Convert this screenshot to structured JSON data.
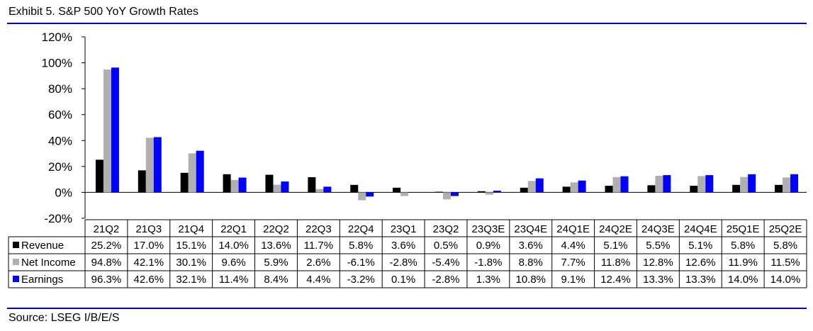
{
  "header": {
    "title": "Exhibit 5.  S&P 500 YoY Growth Rates"
  },
  "footer": {
    "source": "Source: LSEG I/B/E/S"
  },
  "chart_data": {
    "type": "bar",
    "title": "Exhibit 5.  S&P 500 YoY Growth Rates",
    "categories": [
      "21Q2",
      "21Q3",
      "21Q4",
      "22Q1",
      "22Q2",
      "22Q3",
      "22Q4",
      "23Q1",
      "23Q2",
      "23Q3E",
      "23Q4E",
      "24Q1E",
      "24Q2E",
      "24Q3E",
      "24Q4E",
      "25Q1E",
      "25Q2E"
    ],
    "y_ticks": [
      "-20%",
      "0%",
      "20%",
      "40%",
      "60%",
      "80%",
      "100%",
      "120%"
    ],
    "ylim": [
      -20,
      120
    ],
    "y_tick_step": 20,
    "grid": false,
    "legend_position": "data-table-left",
    "series": [
      {
        "name": "Revenue",
        "color": "#000000",
        "values": [
          25.2,
          17.0,
          15.1,
          14.0,
          13.6,
          11.7,
          5.8,
          3.6,
          0.5,
          0.9,
          3.6,
          4.4,
          5.1,
          5.5,
          5.1,
          5.8,
          5.8
        ],
        "labels": [
          "25.2%",
          "17.0%",
          "15.1%",
          "14.0%",
          "13.6%",
          "11.7%",
          "5.8%",
          "3.6%",
          "0.5%",
          "0.9%",
          "3.6%",
          "4.4%",
          "5.1%",
          "5.5%",
          "5.1%",
          "5.8%",
          "5.8%"
        ]
      },
      {
        "name": "Net Income",
        "color": "#b0b0b0",
        "values": [
          94.8,
          42.1,
          30.1,
          9.6,
          5.9,
          2.6,
          -6.1,
          -2.8,
          -5.4,
          -1.8,
          8.8,
          7.7,
          11.8,
          12.8,
          12.6,
          11.9,
          11.5
        ],
        "labels": [
          "94.8%",
          "42.1%",
          "30.1%",
          "9.6%",
          "5.9%",
          "2.6%",
          "-6.1%",
          "-2.8%",
          "-5.4%",
          "-1.8%",
          "8.8%",
          "7.7%",
          "11.8%",
          "12.8%",
          "12.6%",
          "11.9%",
          "11.5%"
        ]
      },
      {
        "name": "Earnings",
        "color": "#0000ff",
        "values": [
          96.3,
          42.6,
          32.1,
          11.4,
          8.4,
          4.4,
          -3.2,
          0.1,
          -2.8,
          1.3,
          10.8,
          9.1,
          12.4,
          13.3,
          13.3,
          14.0,
          14.0
        ],
        "labels": [
          "96.3%",
          "42.6%",
          "32.1%",
          "11.4%",
          "8.4%",
          "4.4%",
          "-3.2%",
          "0.1%",
          "-2.8%",
          "1.3%",
          "10.8%",
          "9.1%",
          "12.4%",
          "13.3%",
          "13.3%",
          "14.0%",
          "14.0%"
        ]
      }
    ]
  }
}
